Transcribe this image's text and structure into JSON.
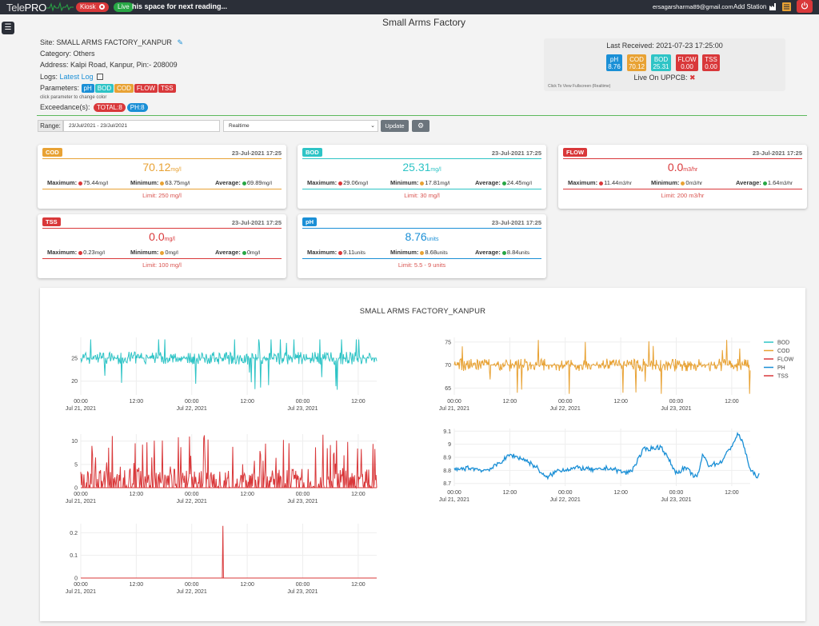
{
  "topbar": {
    "logo_tele": "Tele",
    "logo_pro": "PRO",
    "kiosk_label": "Kiosk",
    "live_label": "Live",
    "ticker_text": "his space for next reading...",
    "user_email": "ersagarsharma89@gmail.com",
    "add_station_label": "Add Station"
  },
  "page": {
    "title": "Small Arms Factory"
  },
  "site": {
    "site_label": "Site:",
    "site_name": "SMALL ARMS FACTORY_KANPUR",
    "category_label": "Category:",
    "category_value": "Others",
    "address_label": "Address:",
    "address_value": "Kalpi Road, Kanpur, Pin:- 208009",
    "logs_label": "Logs:",
    "logs_link": "Latest Log",
    "parameters_label": "Parameters:",
    "parameters": [
      {
        "name": "pH",
        "color": "#1a8fd6"
      },
      {
        "name": "BOD",
        "color": "#2ec4c6"
      },
      {
        "name": "COD",
        "color": "#e8a234"
      },
      {
        "name": "FLOW",
        "color": "#d9383a"
      },
      {
        "name": "TSS",
        "color": "#d9383a"
      }
    ],
    "param_note": "click parameter to change color",
    "exceedance_label": "Exceedance(s):",
    "exceedances": [
      {
        "label": "TOTAL:8",
        "color": "#d9383a"
      },
      {
        "label": "PH:8",
        "color": "#1a8fd6"
      }
    ]
  },
  "received": {
    "title": "Last Received: 2021-07-23 17:25:00",
    "badges": [
      {
        "name": "pH",
        "value": "8.76",
        "color": "#1a8fd6"
      },
      {
        "name": "COD",
        "value": "70.12",
        "color": "#e8a234"
      },
      {
        "name": "BOD",
        "value": "25.31",
        "color": "#2ec4c6"
      },
      {
        "name": "FLOW",
        "value": "0.00",
        "color": "#d9383a"
      },
      {
        "name": "TSS",
        "value": "0.00",
        "color": "#d9383a"
      }
    ],
    "live_on": "Live On UPPCB:",
    "fullscreen_note": "Click To View Fullscreen (Realtime)"
  },
  "controls": {
    "range_label": "Range:",
    "range_value": "23/Jul/2021 - 23/Jul/2021",
    "mode_value": "Realtime",
    "update_label": "Update"
  },
  "cards": [
    {
      "tag": "COD",
      "color": "#e8a234",
      "date": "23-Jul-2021 17:25",
      "value": "70.12",
      "unit": "mg/l",
      "max_label": "Maximum:",
      "max": "75.44",
      "min_label": "Minimum:",
      "min": "63.75",
      "avg_label": "Average:",
      "avg": "69.89",
      "limit": "Limit: 250 mg/l"
    },
    {
      "tag": "BOD",
      "color": "#2ec4c6",
      "date": "23-Jul-2021 17:25",
      "value": "25.31",
      "unit": "mg/l",
      "max_label": "Maximum:",
      "max": "29.06",
      "min_label": "Minimum:",
      "min": "17.81",
      "avg_label": "Average:",
      "avg": "24.45",
      "limit": "Limit: 30 mg/l"
    },
    {
      "tag": "FLOW",
      "color": "#d9383a",
      "date": "23-Jul-2021 17:25",
      "value": "0.0",
      "unit": "m3/hr",
      "max_label": "Maximum:",
      "max": "11.44",
      "min_label": "Minimum:",
      "min": "0",
      "avg_label": "Average:",
      "avg": "1.64",
      "limit": "Limit: 200 m3/hr"
    },
    {
      "tag": "TSS",
      "color": "#d9383a",
      "date": "23-Jul-2021 17:25",
      "value": "0.0",
      "unit": "mg/l",
      "max_label": "Maximum:",
      "max": "0.23",
      "min_label": "Minimum:",
      "min": "0",
      "avg_label": "Average:",
      "avg": "0",
      "limit": "Limit: 100 mg/l"
    },
    {
      "tag": "pH",
      "color": "#1a8fd6",
      "date": "23-Jul-2021 17:25",
      "value": "8.76",
      "unit": "units",
      "max_label": "Maximum:",
      "max": "9.11",
      "min_label": "Minimum:",
      "min": "8.68",
      "avg_label": "Average:",
      "avg": "8.84",
      "limit": "Limit: 5.5 - 9 units"
    }
  ],
  "chart_panel": {
    "title": "SMALL ARMS FACTORY_KANPUR",
    "legend": [
      {
        "name": "BOD",
        "color": "#2ec4c6"
      },
      {
        "name": "COD",
        "color": "#e8a234"
      },
      {
        "name": "FLOW",
        "color": "#d9383a"
      },
      {
        "name": "PH",
        "color": "#1a8fd6"
      },
      {
        "name": "TSS",
        "color": "#d9383a"
      }
    ]
  },
  "chart_data": [
    {
      "type": "line",
      "series_name": "BOD",
      "color": "#2ec4c6",
      "x_ticks": [
        "00:00\nJul 21, 2021",
        "12:00",
        "00:00\nJul 22, 2021",
        "12:00",
        "00:00\nJul 23, 2021",
        "12:00"
      ],
      "y_ticks": [
        20,
        25
      ],
      "ylim": [
        17,
        29.5
      ],
      "baseline": 25,
      "min": 17.81,
      "max": 29.06
    },
    {
      "type": "line",
      "series_name": "COD",
      "color": "#e8a234",
      "x_ticks": [
        "00:00\nJul 21, 2021",
        "12:00",
        "00:00\nJul 22, 2021",
        "12:00",
        "00:00\nJul 23, 2021",
        "12:00"
      ],
      "y_ticks": [
        65,
        70,
        75
      ],
      "ylim": [
        63.5,
        76
      ],
      "baseline": 70,
      "min": 63.75,
      "max": 75.44
    },
    {
      "type": "line",
      "series_name": "FLOW",
      "color": "#d9383a",
      "x_ticks": [
        "00:00\nJul 21, 2021",
        "12:00",
        "00:00\nJul 22, 2021",
        "12:00",
        "00:00\nJul 23, 2021",
        "12:00"
      ],
      "y_ticks": [
        0,
        5,
        10
      ],
      "ylim": [
        0,
        11.5
      ],
      "min": 0,
      "max": 11.44
    },
    {
      "type": "line",
      "series_name": "PH",
      "color": "#1a8fd6",
      "x_ticks": [
        "00:00\nJul 21, 2021",
        "12:00",
        "00:00\nJul 22, 2021",
        "12:00",
        "00:00\nJul 23, 2021",
        "12:00"
      ],
      "y_ticks": [
        8.7,
        8.8,
        8.9,
        9,
        9.1
      ],
      "ylim": [
        8.68,
        9.12
      ],
      "min": 8.68,
      "max": 9.11
    },
    {
      "type": "line",
      "series_name": "TSS",
      "color": "#d9383a",
      "x_ticks": [
        "00:00\nJul 21, 2021",
        "12:00",
        "00:00\nJul 22, 2021",
        "12:00",
        "00:00\nJul 23, 2021",
        "12:00"
      ],
      "y_ticks": [
        0,
        0.1,
        0.2
      ],
      "ylim": [
        0,
        0.24
      ],
      "min": 0,
      "max": 0.23
    }
  ]
}
